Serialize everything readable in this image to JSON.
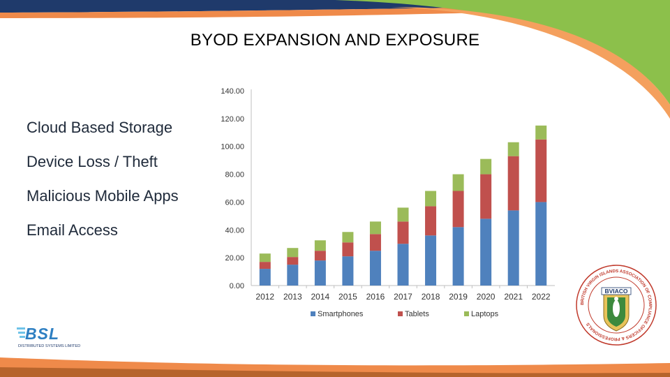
{
  "slide": {
    "title": "BYOD EXPANSION AND EXPOSURE",
    "bullets": [
      "Cloud Based Storage",
      "Device Loss / Theft",
      "Malicious Mobile Apps",
      "Email Access"
    ]
  },
  "logos": {
    "left_text": "BSL",
    "left_subtitle": "DISTRIBUTED SYSTEMS LIMITED",
    "right_text": "BVIACO",
    "right_ring_text": "BRITISH VIRGIN ISLANDS ASSOCIATION OF COMPLIANCE OFFICERS & PROFESSIONALS"
  },
  "colors": {
    "smartphones": "#4f81bd",
    "tablets": "#c0504d",
    "laptops": "#9bbb59",
    "band_blue": "#1f3a6b",
    "band_orange": "#ef8a4a",
    "band_green": "#8cc04b"
  },
  "chart_data": {
    "type": "bar",
    "stacked": true,
    "categories": [
      "2012",
      "2013",
      "2014",
      "2015",
      "2016",
      "2017",
      "2018",
      "2019",
      "2020",
      "2021",
      "2022"
    ],
    "series": [
      {
        "name": "Smartphones",
        "values": [
          12,
          15,
          18,
          21,
          25,
          30,
          36,
          42,
          48,
          54,
          60
        ]
      },
      {
        "name": "Tablets",
        "values": [
          5,
          5.5,
          7,
          10,
          12,
          16,
          21,
          26,
          32,
          39,
          45
        ]
      },
      {
        "name": "Laptops",
        "values": [
          6,
          6.5,
          7.5,
          7.5,
          9,
          10,
          11,
          12,
          11,
          10,
          10
        ]
      }
    ],
    "ylim": [
      0,
      140
    ],
    "yticks": [
      "0.00",
      "20.00",
      "40.00",
      "60.00",
      "80.00",
      "100.00",
      "120.00",
      "140.00"
    ],
    "legend_position": "bottom",
    "title": "",
    "xlabel": "",
    "ylabel": ""
  }
}
